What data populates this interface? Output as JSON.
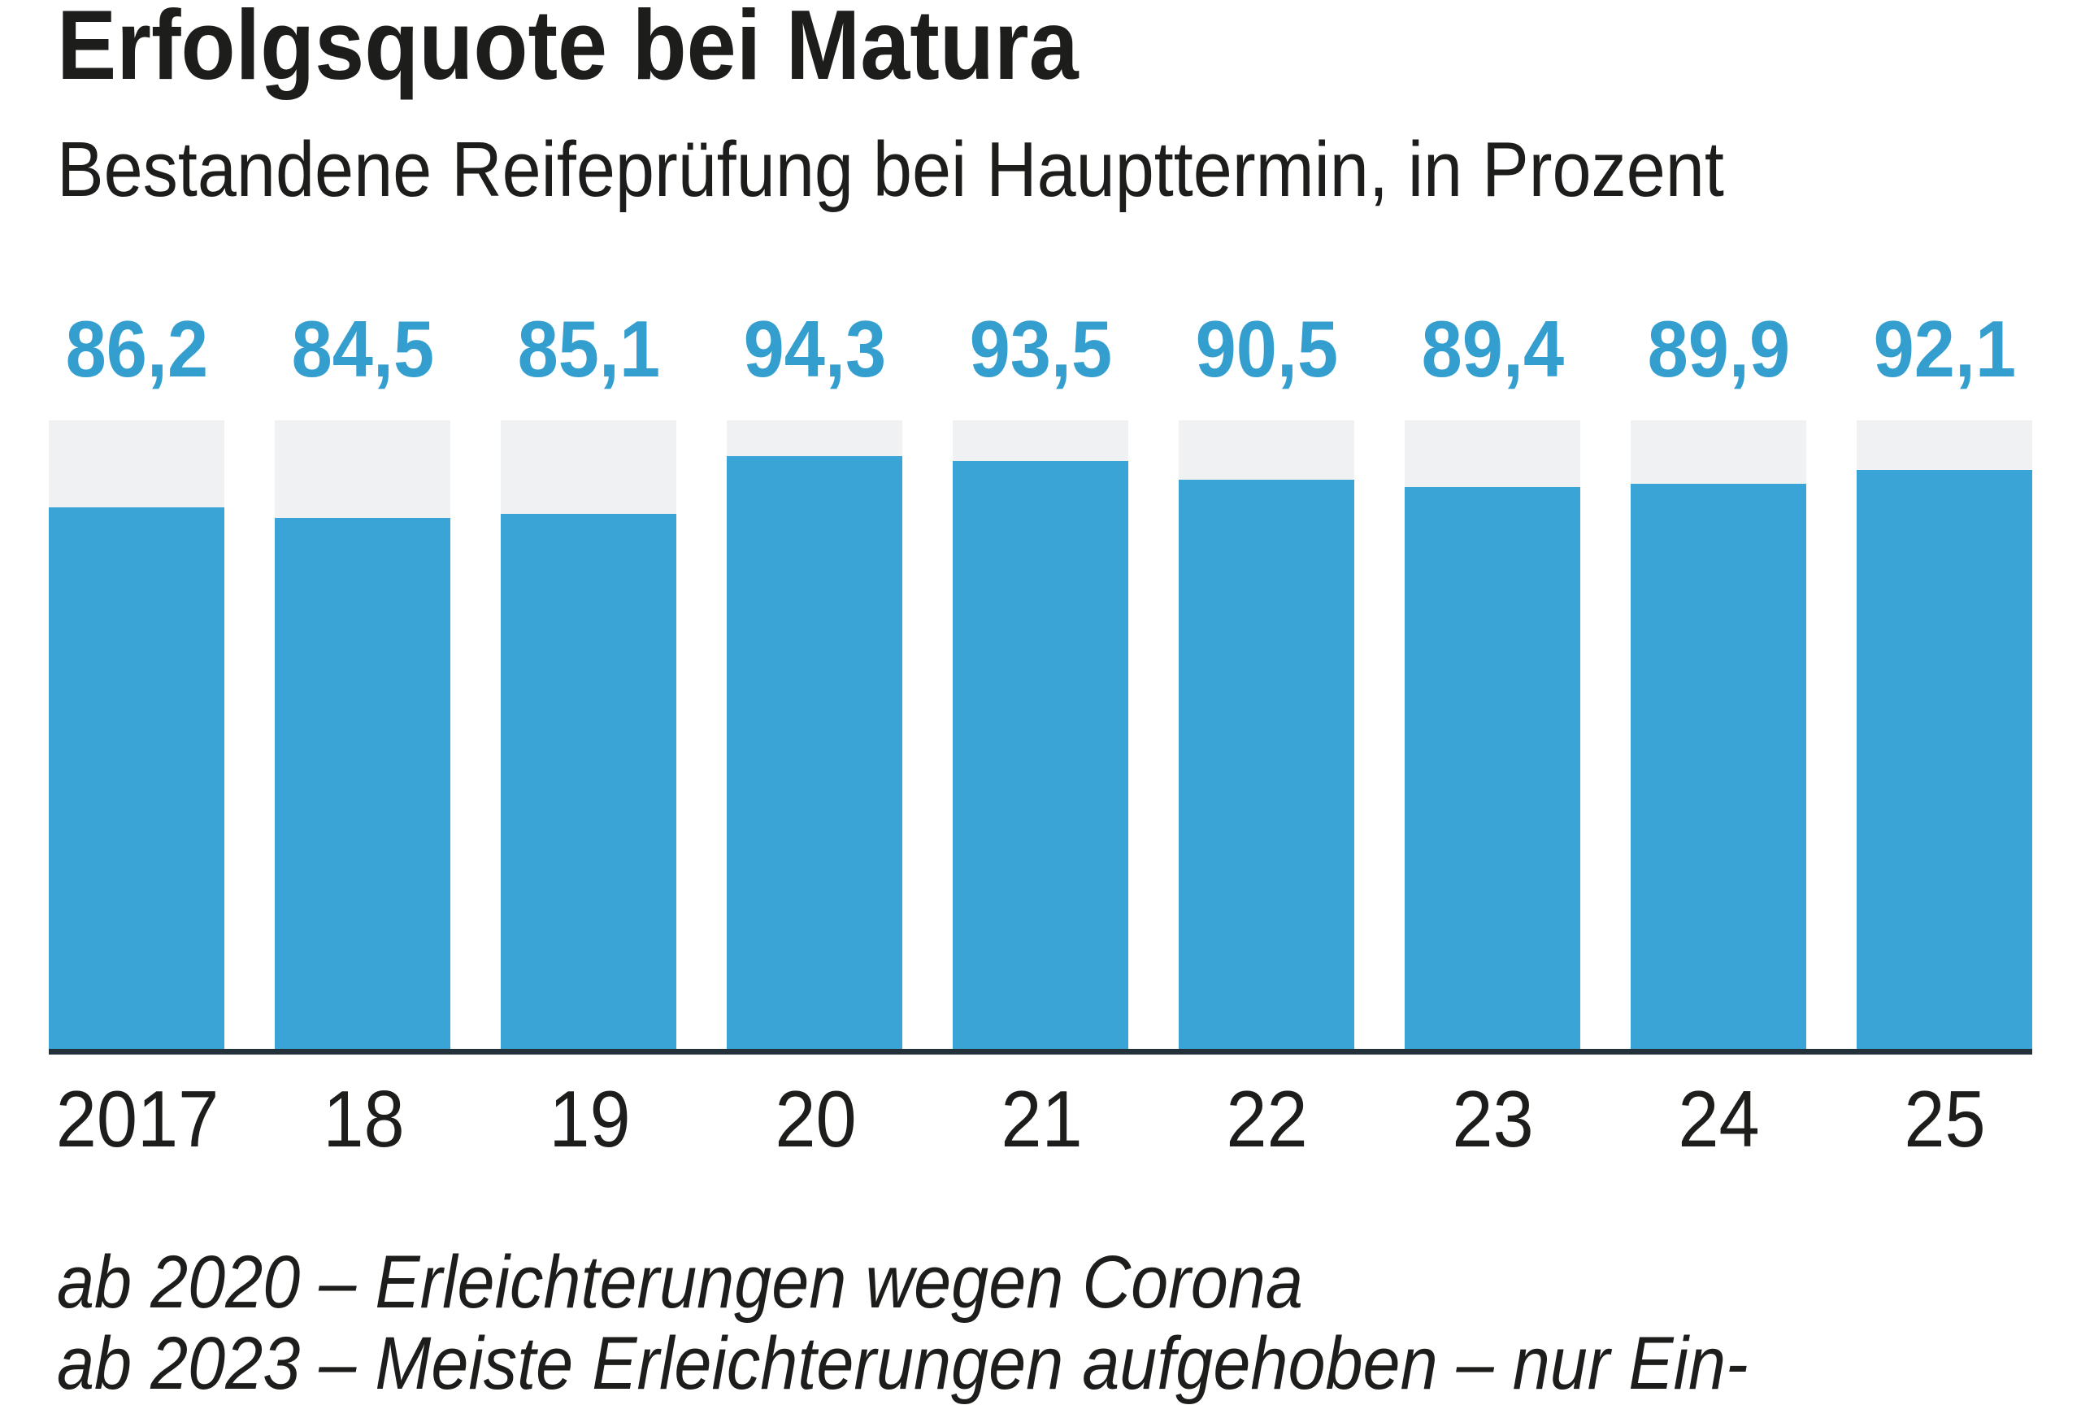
{
  "header": {
    "title": "Erfolgsquote bei Matura",
    "subtitle": "Bestandene Reifeprüfung bei Haupttermin, in Prozent"
  },
  "chart_data": {
    "type": "bar",
    "title": "Erfolgsquote bei Matura",
    "subtitle": "Bestandene Reifeprüfung bei Haupttermin, in Prozent",
    "categories": [
      "2017",
      "18",
      "19",
      "20",
      "21",
      "22",
      "23",
      "24",
      "25"
    ],
    "values": [
      86.2,
      84.5,
      85.1,
      94.3,
      93.5,
      90.5,
      89.4,
      89.9,
      92.1
    ],
    "value_labels": [
      "86,2",
      "84,5",
      "85,1",
      "94,3",
      "93,5",
      "90,5",
      "89,4",
      "89,9",
      "92,1"
    ],
    "xlabel": "",
    "ylabel": "Prozent",
    "ylim": [
      0,
      100
    ],
    "grid": false,
    "legend_position": "none",
    "background_track_full_height": true,
    "colors": {
      "bar": "#3aa4d6",
      "track": "#f0f1f2",
      "value_label": "#349fce",
      "axis_line": "#22313a",
      "text": "#1d1d1b"
    }
  },
  "footnotes": [
    "ab 2020 – Erleichterungen wegen Corona",
    "ab 2023 – Meiste Erleichterungen aufgehoben – nur Ein-"
  ]
}
